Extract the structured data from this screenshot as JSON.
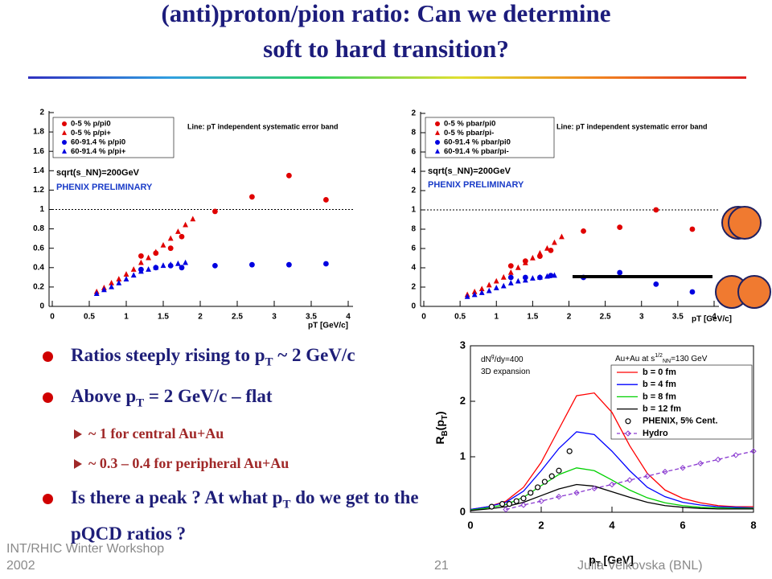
{
  "title": [
    "(anti)proton/pion ratio: Can we determine",
    "soft to hard transition?"
  ],
  "chart_data": [
    {
      "type": "scatter",
      "xlim": [
        0,
        4
      ],
      "xticks": [
        0,
        0.5,
        1,
        1.5,
        2,
        2.5,
        3,
        3.5,
        4
      ],
      "ylim": [
        0,
        2
      ],
      "yticks": [
        0,
        0.2,
        0.4,
        0.6,
        0.8,
        1,
        1.2,
        1.4,
        1.6,
        1.8,
        2
      ],
      "ref_line": 1,
      "x_label": "pT [GeV/c]",
      "annotations": [
        "Line: pT independent systematic error band",
        "sqrt(s_NN)=200GeV",
        "PHENIX PRELIMINARY"
      ],
      "series": [
        {
          "name": "0-5 % p/pi0",
          "color": "#e00000",
          "marker": "circle",
          "x": [
            1.2,
            1.4,
            1.6,
            1.75,
            2.2,
            2.7,
            3.2,
            3.7
          ],
          "values": [
            0.52,
            0.55,
            0.6,
            0.72,
            0.98,
            1.13,
            1.35,
            1.1
          ]
        },
        {
          "name": "0-5 % p/pi+",
          "color": "#e00000",
          "marker": "triangle",
          "x": [
            0.6,
            0.7,
            0.8,
            0.9,
            1.0,
            1.1,
            1.2,
            1.3,
            1.4,
            1.5,
            1.6,
            1.7,
            1.8,
            1.9
          ],
          "values": [
            0.15,
            0.19,
            0.24,
            0.28,
            0.33,
            0.38,
            0.45,
            0.5,
            0.56,
            0.63,
            0.7,
            0.77,
            0.84,
            0.9
          ]
        },
        {
          "name": "60-91.4 % p/pi0",
          "color": "#0000e0",
          "marker": "circle",
          "x": [
            1.2,
            1.4,
            1.6,
            1.75,
            2.2,
            2.7,
            3.2,
            3.7
          ],
          "values": [
            0.38,
            0.4,
            0.42,
            0.4,
            0.42,
            0.43,
            0.43,
            0.44
          ]
        },
        {
          "name": "60-91.4 % p/pi+",
          "color": "#0000e0",
          "marker": "triangle",
          "x": [
            0.6,
            0.7,
            0.8,
            0.9,
            1.0,
            1.1,
            1.2,
            1.3,
            1.4,
            1.5,
            1.6,
            1.7,
            1.8
          ],
          "values": [
            0.13,
            0.17,
            0.2,
            0.24,
            0.28,
            0.32,
            0.36,
            0.38,
            0.4,
            0.42,
            0.43,
            0.44,
            0.45
          ]
        }
      ]
    },
    {
      "type": "scatter",
      "xlim": [
        0,
        4
      ],
      "xticks": [
        0,
        0.5,
        1,
        1.5,
        2,
        2.5,
        3,
        3.5,
        4
      ],
      "ylim": [
        0,
        2
      ],
      "yticks": [
        0,
        {
          "value": 0.2,
          "label": "2"
        },
        {
          "value": 0.4,
          "label": "4"
        },
        {
          "value": 0.6,
          "label": "6"
        },
        {
          "value": 0.8,
          "label": "8"
        },
        1,
        {
          "value": 1.2,
          "label": "2"
        },
        {
          "value": 1.4,
          "label": "4"
        },
        {
          "value": 1.6,
          "label": "6"
        },
        {
          "value": 1.8,
          "label": "8"
        },
        2
      ],
      "ref_line": 1,
      "x_label": "pT [GeV/c]",
      "annotations": [
        "Line: pT independent systematic error band",
        "sqrt(s_NN)=200GeV",
        "PHENIX PRELIMINARY"
      ],
      "series": [
        {
          "name": "0-5 % pbar/pi0",
          "color": "#e00000",
          "marker": "circle",
          "x": [
            1.2,
            1.4,
            1.6,
            1.75,
            2.2,
            2.7,
            3.2,
            3.7
          ],
          "values": [
            0.42,
            0.47,
            0.52,
            0.58,
            0.78,
            0.82,
            1.0,
            0.8
          ]
        },
        {
          "name": "0-5 % pbar/pi-",
          "color": "#e00000",
          "marker": "triangle",
          "x": [
            0.6,
            0.7,
            0.8,
            0.9,
            1.0,
            1.1,
            1.2,
            1.3,
            1.4,
            1.5,
            1.6,
            1.7,
            1.8,
            1.9
          ],
          "values": [
            0.12,
            0.15,
            0.18,
            0.22,
            0.26,
            0.3,
            0.35,
            0.4,
            0.45,
            0.5,
            0.55,
            0.6,
            0.66,
            0.72
          ]
        },
        {
          "name": "60-91.4 % pbar/pi0",
          "color": "#0000e0",
          "marker": "circle",
          "x": [
            1.2,
            1.4,
            1.6,
            1.75,
            2.2,
            2.7,
            3.2,
            3.7
          ],
          "values": [
            0.3,
            0.3,
            0.3,
            0.32,
            0.3,
            0.35,
            0.23,
            0.15
          ]
        },
        {
          "name": "60-91.4 % pbar/pi-",
          "color": "#0000e0",
          "marker": "triangle",
          "x": [
            0.6,
            0.7,
            0.8,
            0.9,
            1.0,
            1.1,
            1.2,
            1.3,
            1.4,
            1.5,
            1.6,
            1.7,
            1.8
          ],
          "values": [
            0.1,
            0.12,
            0.14,
            0.16,
            0.19,
            0.21,
            0.24,
            0.26,
            0.27,
            0.29,
            0.3,
            0.31,
            0.32
          ]
        }
      ]
    },
    {
      "type": "line",
      "xlim": [
        0,
        8
      ],
      "xticks": [
        0,
        2,
        4,
        6,
        8
      ],
      "ylim": [
        0,
        3
      ],
      "yticks": [
        0,
        1,
        2,
        3
      ],
      "x_label": [
        "p",
        {
          "sub": "T"
        },
        " [GeV]"
      ],
      "y_label": [
        "R",
        {
          "sub": "B"
        },
        "(p",
        {
          "sub": "T"
        },
        ")"
      ],
      "annotations": [
        [
          "dN",
          {
            "sup": "g"
          },
          "/dy=400"
        ],
        [
          "3D expansion"
        ],
        [
          "Au+Au at s",
          {
            "sup": "1/2"
          },
          {
            "sub": "NN"
          },
          "=130 GeV"
        ]
      ],
      "series": [
        {
          "name": "b = 0 fm",
          "color": "#ff0000",
          "line": "solid",
          "x": [
            0,
            0.5,
            1,
            1.5,
            2,
            2.5,
            3,
            3.5,
            4,
            4.5,
            5,
            5.5,
            6,
            6.5,
            7,
            7.5,
            8
          ],
          "values": [
            0.05,
            0.1,
            0.2,
            0.45,
            0.9,
            1.5,
            2.1,
            2.15,
            1.8,
            1.2,
            0.7,
            0.4,
            0.25,
            0.17,
            0.12,
            0.1,
            0.1
          ]
        },
        {
          "name": "b = 4 fm",
          "color": "#0000ff",
          "line": "solid",
          "x": [
            0,
            0.5,
            1,
            1.5,
            2,
            2.5,
            3,
            3.5,
            4,
            4.5,
            5,
            5.5,
            6,
            6.5,
            7,
            7.5,
            8
          ],
          "values": [
            0.05,
            0.1,
            0.18,
            0.38,
            0.75,
            1.15,
            1.45,
            1.4,
            1.1,
            0.75,
            0.45,
            0.28,
            0.18,
            0.13,
            0.1,
            0.09,
            0.08
          ]
        },
        {
          "name": "b = 8 fm",
          "color": "#00d000",
          "line": "solid",
          "x": [
            0,
            0.5,
            1,
            1.5,
            2,
            2.5,
            3,
            3.5,
            4,
            4.5,
            5,
            5.5,
            6,
            6.5,
            7,
            7.5,
            8
          ],
          "values": [
            0.04,
            0.08,
            0.14,
            0.27,
            0.48,
            0.68,
            0.8,
            0.75,
            0.58,
            0.4,
            0.26,
            0.17,
            0.12,
            0.09,
            0.08,
            0.07,
            0.07
          ]
        },
        {
          "name": "b = 12 fm",
          "color": "#000000",
          "line": "solid",
          "x": [
            0,
            0.5,
            1,
            1.5,
            2,
            2.5,
            3,
            3.5,
            4,
            4.5,
            5,
            5.5,
            6,
            6.5,
            7,
            7.5,
            8
          ],
          "values": [
            0.03,
            0.06,
            0.1,
            0.18,
            0.3,
            0.42,
            0.5,
            0.47,
            0.37,
            0.27,
            0.18,
            0.12,
            0.09,
            0.07,
            0.06,
            0.06,
            0.06
          ]
        },
        {
          "name": "PHENIX, 5% Cent.",
          "color": "#000000",
          "marker": "open-circle",
          "x": [
            0.6,
            0.9,
            1.1,
            1.3,
            1.5,
            1.7,
            1.9,
            2.1,
            2.3,
            2.5,
            2.8
          ],
          "values": [
            0.1,
            0.15,
            0.15,
            0.2,
            0.25,
            0.35,
            0.45,
            0.55,
            0.65,
            0.75,
            1.1
          ]
        },
        {
          "name": "Hydro",
          "color": "#8a3ad0",
          "line": "dashed",
          "marker": "diamond",
          "x": [
            1,
            1.5,
            2,
            2.5,
            3,
            3.5,
            4,
            4.5,
            5,
            5.5,
            6,
            6.5,
            7,
            7.5,
            8
          ],
          "values": [
            0.05,
            0.13,
            0.2,
            0.28,
            0.35,
            0.43,
            0.5,
            0.58,
            0.65,
            0.73,
            0.8,
            0.88,
            0.95,
            1.03,
            1.1
          ]
        }
      ]
    }
  ],
  "bullets": [
    {
      "text": [
        "Ratios steeply rising to p",
        {
          "sub": "T"
        },
        " ~ 2 GeV/c"
      ]
    },
    {
      "text": [
        "Above  p",
        {
          "sub": "T"
        },
        " = 2 GeV/c – flat"
      ],
      "sub_items": [
        "~ 1 for central Au+Au",
        "~ 0.3 – 0.4 for peripheral Au+Au"
      ]
    },
    {
      "text": [
        "Is there a peak ?  At what p",
        {
          "sub": "T"
        },
        " do we get to the pQCD ratios ?"
      ]
    }
  ],
  "footer": {
    "event": "INT/RHIC Winter Workshop 2002",
    "page": "21",
    "author": "Julia Velkovska (BNL)"
  }
}
